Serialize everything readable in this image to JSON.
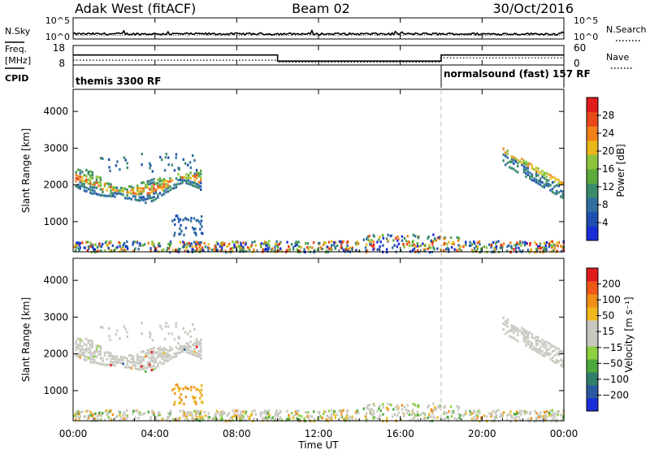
{
  "header": {
    "station": "Adak West (fitACF)",
    "beam": "Beam 02",
    "date": "30/Oct/2016"
  },
  "colors": {
    "axis": "#000000",
    "grid_dash": "#bbbbbb",
    "ground_scatter": "#c8c8c0"
  },
  "chart_data": [
    {
      "type": "line",
      "name": "noise-panel",
      "left_label": "N.Sky",
      "right_label": "N.Search",
      "left_ticks": [
        "10^5",
        "10^0"
      ],
      "right_ticks": [
        "10^5",
        "10^0"
      ],
      "xlim": [
        0,
        24
      ]
    },
    {
      "type": "line",
      "name": "frequency-panel",
      "left_label_top": "Freq.",
      "left_label_unit": "[MHz]",
      "left_label_cpid": "CPID",
      "right_label": "Nave",
      "left_ticks": [
        18,
        8
      ],
      "right_ticks": [
        60,
        0
      ],
      "ylim_left": [
        8,
        18
      ],
      "ylim_right": [
        0,
        60
      ],
      "freq_segments": [
        {
          "t0": 0,
          "t1": 10.0,
          "mhz": 13.6
        },
        {
          "t0": 10.0,
          "t1": 18.0,
          "mhz": 10.2
        },
        {
          "t0": 18.0,
          "t1": 24.0,
          "mhz": 13.6
        }
      ],
      "nave_segments": [
        {
          "t0": 0,
          "t1": 10.0,
          "nave": 16
        },
        {
          "t0": 10.0,
          "t1": 18.0,
          "nave": 9
        },
        {
          "t0": 18.0,
          "t1": 24.0,
          "nave": 24
        }
      ],
      "cpid": [
        {
          "t0": 0,
          "text": "themis 3300 RF"
        },
        {
          "t0": 18.0,
          "text": "normalsound (fast) 157 RF"
        }
      ]
    },
    {
      "type": "heatmap",
      "name": "power-panel",
      "ylabel": "Slant Range [km]",
      "yticks": [
        1000,
        2000,
        3000,
        4000
      ],
      "ylim": [
        180,
        4600
      ],
      "colorbar_label": "Power [dB]",
      "colorbar_ticks": [
        4,
        8,
        12,
        16,
        20,
        24,
        28
      ],
      "colorbar_range": [
        0,
        30
      ],
      "colorbar_colors": [
        "#1a2ed8",
        "#1f4fb0",
        "#2f6f9f",
        "#3a8a6a",
        "#5caa3c",
        "#8cc43c",
        "#e8b81c",
        "#f08018",
        "#e84818",
        "#e01c1c"
      ]
    },
    {
      "type": "heatmap",
      "name": "velocity-panel",
      "ylabel": "Slant Range [km]",
      "yticks": [
        1000,
        2000,
        3000,
        4000
      ],
      "ylim": [
        180,
        4600
      ],
      "colorbar_label": "Velocity [m s⁻¹]",
      "colorbar_ticks": [
        "200",
        "100",
        "50",
        "15",
        "−15",
        "−50",
        "−100",
        "−200"
      ],
      "colorbar_colors": [
        "#1a2ed8",
        "#2a5aa0",
        "#2f7f6a",
        "#4caa3c",
        "#8cd040",
        "#c8c8c0",
        "#c8c8c0",
        "#f0b81c",
        "#f09018",
        "#f05818",
        "#e01c1c"
      ]
    }
  ],
  "xaxis": {
    "xlabel": "Time UT",
    "tick_labels": [
      "00:00",
      "04:00",
      "08:00",
      "12:00",
      "16:00",
      "20:00",
      "00:00"
    ],
    "tick_hours": [
      0,
      4,
      8,
      12,
      16,
      20,
      24
    ]
  }
}
